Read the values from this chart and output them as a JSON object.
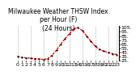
{
  "title": "Milwaukee Weather THSW Index\nper Hour (F)\n(24 Hours)",
  "hours": [
    0,
    1,
    2,
    3,
    4,
    5,
    6,
    7,
    8,
    9,
    10,
    11,
    12,
    13,
    14,
    15,
    16,
    17,
    18,
    19,
    20,
    21,
    22,
    23
  ],
  "values": [
    35,
    33,
    32,
    31,
    30,
    29,
    28,
    30,
    38,
    50,
    65,
    78,
    90,
    102,
    105,
    98,
    85,
    72,
    60,
    52,
    48,
    45,
    42,
    40
  ],
  "line_color": "#ff0000",
  "dot_color": "#000000",
  "bg_color": "#ffffff",
  "grid_color": "#888888",
  "ylim_min": 25,
  "ylim_max": 110,
  "yticks": [
    25,
    35,
    45,
    55,
    65,
    75,
    85,
    95,
    105
  ],
  "ytick_labels": [
    "25.",
    "35.",
    "45.",
    "55.",
    "65.",
    "75.",
    "85.",
    "95.",
    "105."
  ],
  "title_fontsize": 5.5,
  "tick_fontsize": 4.5,
  "line_width": 1.0,
  "dot_size": 2.5,
  "vgrid_hours": [
    0,
    3,
    6,
    9,
    12,
    15,
    18,
    21,
    23
  ]
}
